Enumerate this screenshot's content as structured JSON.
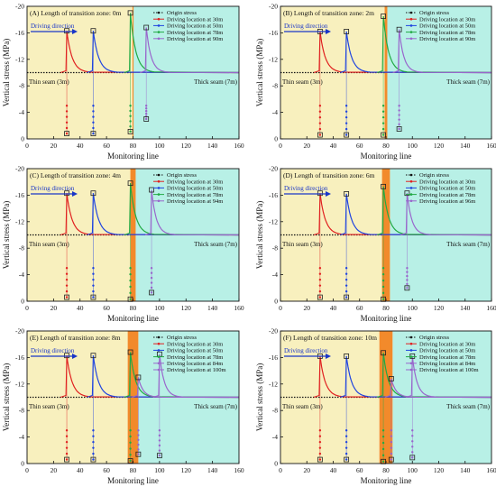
{
  "figure": {
    "common": {
      "ylabel": "Vertical stress (MPa)",
      "xlabel": "Monitoring line",
      "xticks": [
        "0",
        "20",
        "40",
        "60",
        "80",
        "100",
        "120",
        "140",
        "160"
      ],
      "yticks": [
        "-20",
        "-16",
        "-12",
        "-8",
        "-4",
        "0"
      ],
      "thin_label": "Thin seam (3m)",
      "thick_label": "Thick seam (7m)",
      "direction_label": "Driving direction"
    },
    "colors": {
      "thin_zone": "#f8f0be",
      "thick_zone": "#b8f0e6",
      "transition": "#f28a2b",
      "origin": "#111111",
      "s30": "#e02020",
      "s50": "#1f44e0",
      "s78": "#22aa44",
      "sLast": "#9966cc",
      "direction": "#1a36c8"
    }
  },
  "chart_data": [
    {
      "type": "line",
      "title": "(A) Length of transition zone: 0m",
      "transition": [
        80,
        80
      ],
      "xlim": [
        0,
        160
      ],
      "ylim": [
        0,
        -20
      ],
      "origin_stress": -10,
      "legend": [
        "Origin stress",
        "Driving location at 30m",
        "Driving location at 50m",
        "Driving location at 78m",
        "Driving location at 90m"
      ],
      "series": [
        {
          "driving_location": 30,
          "peak": -16.3,
          "face_low": -0.8,
          "base": -10
        },
        {
          "driving_location": 50,
          "peak": -16.3,
          "face_low": -0.8,
          "base": -10
        },
        {
          "driving_location": 78,
          "peak": -19,
          "face_low": -1.1,
          "base": -10
        },
        {
          "driving_location": 90,
          "peak": -16.8,
          "face_low": -3.0,
          "base": -10
        }
      ]
    },
    {
      "type": "line",
      "title": "(B) Length of transition zone: 2m",
      "transition": [
        79,
        81
      ],
      "xlim": [
        0,
        160
      ],
      "ylim": [
        0,
        -20
      ],
      "origin_stress": -10,
      "legend": [
        "Origin stress",
        "Driving location at 30m",
        "Driving location at 50m",
        "Driving location at 78m",
        "Driving location at 90m"
      ],
      "series": [
        {
          "driving_location": 30,
          "peak": -16.2,
          "face_low": -0.6,
          "base": -10
        },
        {
          "driving_location": 50,
          "peak": -16.2,
          "face_low": -0.6,
          "base": -10
        },
        {
          "driving_location": 78,
          "peak": -18.5,
          "face_low": -0.6,
          "base": -10
        },
        {
          "driving_location": 90,
          "peak": -16.5,
          "face_low": -1.5,
          "base": -10
        }
      ]
    },
    {
      "type": "line",
      "title": "(C) Length of transition zone: 4m",
      "transition": [
        78,
        82
      ],
      "xlim": [
        0,
        160
      ],
      "ylim": [
        0,
        -20
      ],
      "origin_stress": -10,
      "legend": [
        "Origin stress",
        "Driving location at 30m",
        "Driving location at 50m",
        "Driving location at 78m",
        "Driving location at 94m"
      ],
      "series": [
        {
          "driving_location": 30,
          "peak": -16.3,
          "face_low": -0.6,
          "base": -10
        },
        {
          "driving_location": 50,
          "peak": -16.3,
          "face_low": -0.6,
          "base": -10
        },
        {
          "driving_location": 78,
          "peak": -17.8,
          "face_low": -0.3,
          "base": -10
        },
        {
          "driving_location": 94,
          "peak": -16.8,
          "face_low": -1.3,
          "base": -10
        }
      ]
    },
    {
      "type": "line",
      "title": "(D) Length of transition zone: 6m",
      "transition": [
        77,
        83
      ],
      "xlim": [
        0,
        160
      ],
      "ylim": [
        0,
        -20
      ],
      "origin_stress": -10,
      "legend": [
        "Origin stress",
        "Driving location at 30m",
        "Driving location at 50m",
        "Driving location at 78m",
        "Driving location at 96m"
      ],
      "series": [
        {
          "driving_location": 30,
          "peak": -16.3,
          "face_low": -0.6,
          "base": -10
        },
        {
          "driving_location": 50,
          "peak": -16.2,
          "face_low": -0.6,
          "base": -10
        },
        {
          "driving_location": 78,
          "peak": -17.3,
          "face_low": -0.3,
          "base": -10
        },
        {
          "driving_location": 96,
          "peak": -16.3,
          "face_low": -2.0,
          "base": -10
        }
      ]
    },
    {
      "type": "line",
      "title": "(E) Length of transition zone: 8m",
      "transition": [
        76,
        84
      ],
      "xlim": [
        0,
        160
      ],
      "ylim": [
        0,
        -20
      ],
      "origin_stress": -10,
      "legend": [
        "Origin stress",
        "Driving location at 30m",
        "Driving location at 50m",
        "Driving location at 78m",
        "Driving location at 84m",
        "Driving location at 100m"
      ],
      "series": [
        {
          "driving_location": 30,
          "peak": -16.3,
          "face_low": -0.6,
          "base": -10
        },
        {
          "driving_location": 50,
          "peak": -16.3,
          "face_low": -0.6,
          "base": -10
        },
        {
          "driving_location": 78,
          "peak": -16.8,
          "face_low": -0.4,
          "base": -10
        },
        {
          "driving_location": 84,
          "peak": -13.0,
          "face_low": -1.4,
          "base": -10
        },
        {
          "driving_location": 100,
          "peak": -16.5,
          "face_low": -1.2,
          "base": -10
        }
      ]
    },
    {
      "type": "line",
      "title": "(F) Length of transition zone: 10m",
      "transition": [
        75,
        85
      ],
      "xlim": [
        0,
        160
      ],
      "ylim": [
        0,
        -20
      ],
      "origin_stress": -10,
      "legend": [
        "Origin stress",
        "Driving location at 30m",
        "Driving location at 50m",
        "Driving location at 78m",
        "Driving location at 84m",
        "Driving location at 100m"
      ],
      "series": [
        {
          "driving_location": 30,
          "peak": -16.2,
          "face_low": -0.6,
          "base": -10
        },
        {
          "driving_location": 50,
          "peak": -16.2,
          "face_low": -0.6,
          "base": -10
        },
        {
          "driving_location": 78,
          "peak": -16.7,
          "face_low": -0.3,
          "base": -10
        },
        {
          "driving_location": 84,
          "peak": -12.8,
          "face_low": -0.6,
          "base": -10
        },
        {
          "driving_location": 100,
          "peak": -16.2,
          "face_low": -0.9,
          "base": -10
        }
      ]
    }
  ]
}
